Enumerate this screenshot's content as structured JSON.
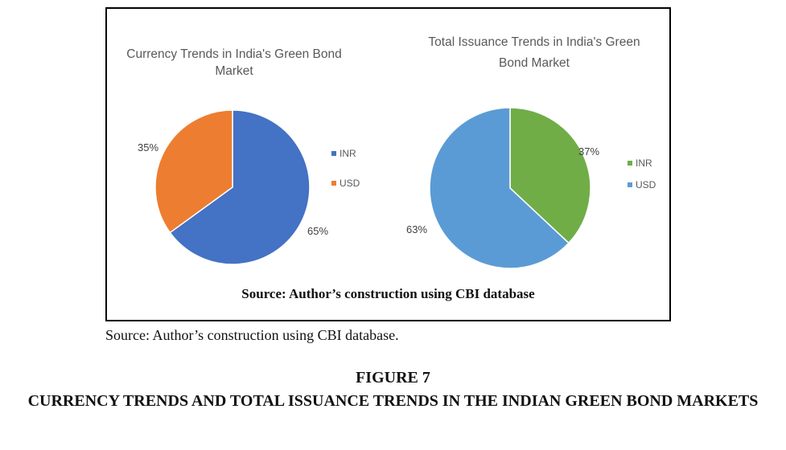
{
  "chart_data": [
    {
      "type": "pie",
      "title": "Currency Trends in India's Green Bond Market",
      "categories": [
        "INR",
        "USD"
      ],
      "values": [
        65,
        35
      ],
      "value_labels": [
        "65%",
        "35%"
      ],
      "colors": [
        "#4472C4",
        "#ED7D31"
      ],
      "legend": "right"
    },
    {
      "type": "pie",
      "title": "Total Issuance Trends in India's Green Bond Market",
      "categories": [
        "INR",
        "USD"
      ],
      "values": [
        37,
        63
      ],
      "value_labels": [
        "37%",
        "63%"
      ],
      "colors": [
        "#70AD47",
        "#5B9BD5"
      ],
      "legend": "right"
    }
  ],
  "chart1_title_lines": [
    "Currency Trends in India's Green Bond",
    "Market"
  ],
  "chart2_title_lines": [
    "Total Issuance Trends in India's Green",
    "Bond Market"
  ],
  "inner_source": "Source: Author’s construction using CBI database",
  "source_note": "Source: Author’s construction using CBI database.",
  "figure_label": "FIGURE 7",
  "figure_caption": "CURRENCY TRENDS AND TOTAL ISSUANCE TRENDS IN THE INDIAN GREEN BOND MARKETS"
}
